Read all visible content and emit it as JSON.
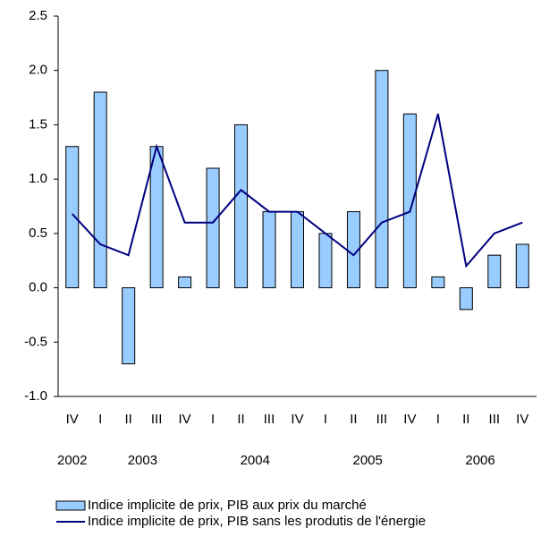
{
  "chart_data": {
    "type": "bar_line",
    "categories": [
      "IV",
      "I",
      "II",
      "III",
      "IV",
      "I",
      "II",
      "III",
      "IV",
      "I",
      "II",
      "III",
      "IV",
      "I",
      "II",
      "III",
      "IV"
    ],
    "years": [
      "2002",
      "2003",
      null,
      null,
      null,
      "2004",
      null,
      null,
      null,
      "2005",
      null,
      null,
      null,
      "2006",
      null,
      null,
      null
    ],
    "series": [
      {
        "name": "Indice implicite de prix, PIB aux prix du marché",
        "type": "bar",
        "color": "#99ccff",
        "values": [
          1.3,
          1.8,
          -0.7,
          1.3,
          0.1,
          1.1,
          1.5,
          0.7,
          0.7,
          0.5,
          0.7,
          2.0,
          1.6,
          0.1,
          -0.2,
          0.3,
          0.4
        ]
      },
      {
        "name": "Indice implicite de prix, PIB sans les produtis de l'énergie",
        "type": "line",
        "color": "#000080",
        "values": [
          0.68,
          0.4,
          0.3,
          1.3,
          0.6,
          0.6,
          0.9,
          0.7,
          0.7,
          0.5,
          0.3,
          0.6,
          0.7,
          1.6,
          0.2,
          0.5,
          0.6
        ]
      }
    ],
    "ylim": [
      -1.0,
      2.5
    ],
    "yticks": [
      {
        "value": -1.0,
        "label": "-1.0"
      },
      -0.5,
      {
        "value": 0,
        "label": "0.0"
      },
      0.5,
      {
        "value": 1.0,
        "label": "1.0"
      },
      1.5,
      {
        "value": 2.0,
        "label": "2.0"
      },
      2.5
    ],
    "legend": "bottom-left"
  }
}
